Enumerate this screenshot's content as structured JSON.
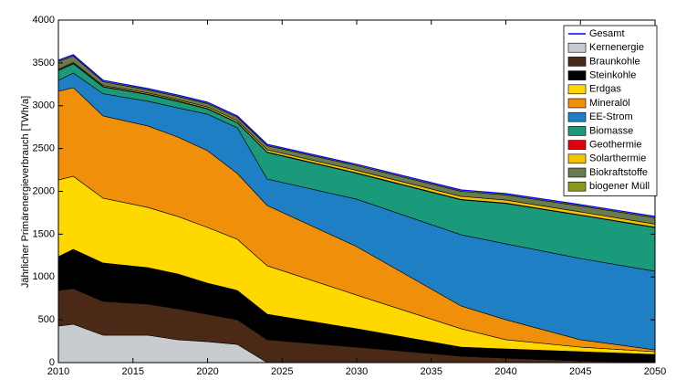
{
  "chart_data": {
    "type": "area",
    "stacked": true,
    "ylabel": "Jährlicher Primärenergieverbrauch [TWh/a]",
    "x": [
      2010,
      2011,
      2013,
      2016,
      2018,
      2020,
      2022,
      2024,
      2030,
      2037,
      2040,
      2045,
      2050
    ],
    "xlim": [
      2010,
      2050
    ],
    "xticks": [
      2010,
      2015,
      2020,
      2025,
      2030,
      2035,
      2040,
      2045,
      2050
    ],
    "ylim": [
      0,
      4000
    ],
    "yticks": [
      0,
      500,
      1000,
      1500,
      2000,
      2500,
      3000,
      3500,
      4000
    ],
    "legend": "upper right",
    "line": {
      "name": "Gesamt",
      "color": "#0000ff",
      "values": [
        3531,
        3595,
        3296,
        3200,
        3125,
        3040,
        2880,
        2549,
        2315,
        2016,
        1973,
        1845,
        1707
      ]
    },
    "series": [
      {
        "name": "Kernenergie",
        "color": "#c8ccd0",
        "values": [
          427,
          448,
          320,
          320,
          267,
          245,
          213,
          0,
          0,
          0,
          0,
          0,
          0
        ]
      },
      {
        "name": "Braunkohle",
        "color": "#4a2a17",
        "values": [
          416,
          416,
          395,
          363,
          362,
          320,
          288,
          267,
          181,
          75,
          53,
          21,
          0
        ]
      },
      {
        "name": "Steinkohle",
        "color": "#000000",
        "values": [
          394,
          459,
          448,
          426,
          406,
          363,
          342,
          298,
          214,
          106,
          107,
          107,
          96
        ]
      },
      {
        "name": "Erdgas",
        "color": "#ffd800",
        "values": [
          896,
          853,
          757,
          704,
          672,
          651,
          597,
          566,
          394,
          214,
          107,
          53,
          32
        ]
      },
      {
        "name": "Mineralöl",
        "color": "#f0900a",
        "values": [
          1035,
          1035,
          960,
          950,
          928,
          896,
          768,
          704,
          566,
          266,
          234,
          86,
          21
        ]
      },
      {
        "name": "EE-Strom",
        "color": "#1f7fc4",
        "values": [
          128,
          170,
          260,
          290,
          340,
          426,
          533,
          309,
          554,
          832,
          886,
          949,
          918
        ]
      },
      {
        "name": "Biomasse",
        "color": "#1a9a7a",
        "values": [
          115,
          109,
          79,
          77,
          75,
          61,
          59,
          310,
          301,
          408,
          471,
          504,
          510
        ]
      },
      {
        "name": "Geothermie",
        "color": "#e00010",
        "values": [
          5,
          5,
          5,
          5,
          5,
          5,
          5,
          5,
          5,
          5,
          5,
          5,
          5
        ]
      },
      {
        "name": "Solarthermie",
        "color": "#f5c400",
        "values": [
          10,
          10,
          12,
          15,
          15,
          18,
          20,
          25,
          30,
          35,
          35,
          35,
          35
        ]
      },
      {
        "name": "Biokraftstoffe",
        "color": "#6b7a50",
        "values": [
          90,
          75,
          45,
          35,
          40,
          40,
          40,
          50,
          55,
          60,
          60,
          70,
          75
        ]
      },
      {
        "name": "biogener Müll",
        "color": "#8a9a20",
        "values": [
          15,
          15,
          15,
          15,
          15,
          15,
          15,
          15,
          15,
          15,
          15,
          15,
          15
        ]
      }
    ]
  }
}
